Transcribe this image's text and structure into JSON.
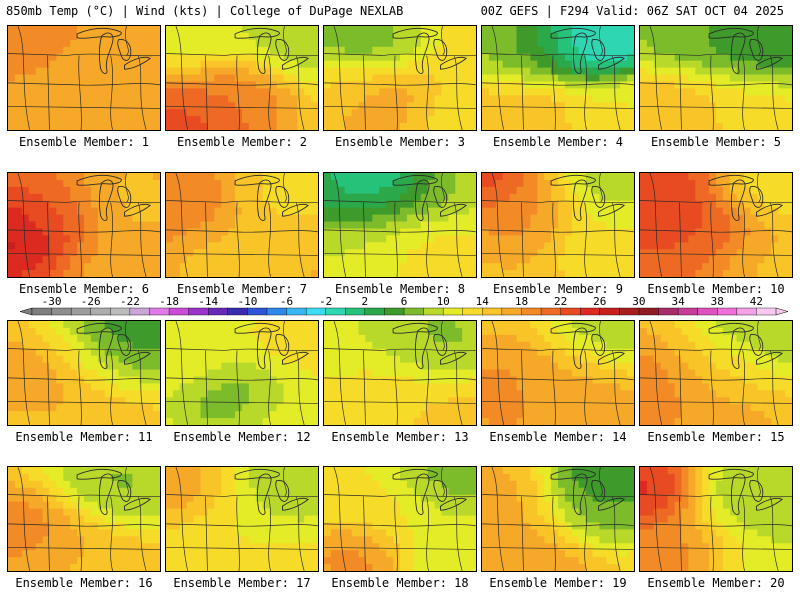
{
  "header": {
    "left": "850mb Temp (°C) | Wind (kts) | College of DuPage NEXLAB",
    "right": "00Z GEFS | F294 Valid: 06Z SAT OCT 04 2025"
  },
  "colorbar": {
    "labels": [
      "-30",
      "-26",
      "-22",
      "-18",
      "-14",
      "-10",
      "-6",
      "-2",
      "2",
      "6",
      "10",
      "14",
      "18",
      "22",
      "26",
      "30",
      "34",
      "38",
      "42"
    ],
    "min": -32,
    "max": 44,
    "step": 2,
    "colors": [
      "#7f7f7f",
      "#8e8e8e",
      "#9d9d9d",
      "#acacac",
      "#bbbbbb",
      "#c9a6d6",
      "#e07ae8",
      "#c94cd9",
      "#9a33c9",
      "#6a28b8",
      "#3a2bb0",
      "#2a55d8",
      "#2d88ea",
      "#36b6f2",
      "#3cdcf0",
      "#2ed6b2",
      "#26c27a",
      "#2aa84a",
      "#3e9a2a",
      "#7cbc2a",
      "#b8d82a",
      "#e4ec28",
      "#f6dc28",
      "#f8c428",
      "#f6a828",
      "#f28a26",
      "#ee6a24",
      "#e84a22",
      "#dc2a20",
      "#c81e1e",
      "#a81e1e",
      "#901c28",
      "#a82c6a",
      "#c83c9a",
      "#e050c0",
      "#ee70d8",
      "#f4a0e6",
      "#f8c8f0"
    ]
  },
  "panels": [
    {
      "caption": "Ensemble Member: 1",
      "base": 18,
      "blobs": [
        [
          0.15,
          0.1,
          0.2,
          20
        ],
        [
          0.85,
          0.85,
          0.3,
          16
        ],
        [
          0.6,
          0.4,
          0.3,
          17
        ]
      ]
    },
    {
      "caption": "Ensemble Member: 2",
      "base": 14,
      "blobs": [
        [
          0.1,
          0.95,
          0.35,
          24
        ],
        [
          0.45,
          0.65,
          0.3,
          20
        ],
        [
          0.85,
          0.1,
          0.35,
          8
        ],
        [
          0.2,
          0.1,
          0.3,
          10
        ]
      ]
    },
    {
      "caption": "Ensemble Member: 3",
      "base": 13,
      "blobs": [
        [
          0.2,
          0.15,
          0.3,
          6
        ],
        [
          0.35,
          0.75,
          0.3,
          18
        ],
        [
          0.9,
          0.9,
          0.3,
          13
        ],
        [
          0.1,
          0.6,
          0.25,
          14
        ]
      ]
    },
    {
      "caption": "Ensemble Member: 4",
      "base": 12,
      "blobs": [
        [
          0.65,
          0.1,
          0.3,
          -2
        ],
        [
          0.8,
          0.15,
          0.25,
          -4
        ],
        [
          0.3,
          0.2,
          0.3,
          6
        ],
        [
          0.25,
          0.9,
          0.35,
          16
        ],
        [
          0.9,
          0.85,
          0.3,
          12
        ]
      ]
    },
    {
      "caption": "Ensemble Member: 5",
      "base": 13,
      "blobs": [
        [
          0.3,
          0.1,
          0.3,
          6
        ],
        [
          0.8,
          0.15,
          0.35,
          3
        ],
        [
          0.2,
          0.85,
          0.35,
          16
        ],
        [
          0.7,
          0.8,
          0.3,
          13
        ]
      ]
    },
    {
      "caption": "Ensemble Member: 6",
      "base": 19,
      "blobs": [
        [
          0.05,
          0.6,
          0.3,
          28
        ],
        [
          0.3,
          0.4,
          0.3,
          22
        ],
        [
          0.8,
          0.3,
          0.35,
          15
        ],
        [
          0.75,
          0.9,
          0.3,
          17
        ]
      ]
    },
    {
      "caption": "Ensemble Member: 7",
      "base": 17,
      "blobs": [
        [
          0.1,
          0.3,
          0.3,
          20
        ],
        [
          0.8,
          0.2,
          0.3,
          13
        ],
        [
          0.5,
          0.8,
          0.35,
          15
        ]
      ]
    },
    {
      "caption": "Ensemble Member: 8",
      "base": 11,
      "blobs": [
        [
          0.35,
          0.05,
          0.25,
          -4
        ],
        [
          0.2,
          0.25,
          0.3,
          2
        ],
        [
          0.6,
          0.2,
          0.3,
          7
        ],
        [
          0.2,
          0.7,
          0.3,
          10
        ],
        [
          0.7,
          0.8,
          0.35,
          13
        ]
      ]
    },
    {
      "caption": "Ensemble Member: 9",
      "base": 15,
      "blobs": [
        [
          0.05,
          0.1,
          0.2,
          24
        ],
        [
          0.25,
          0.4,
          0.3,
          19
        ],
        [
          0.9,
          0.1,
          0.3,
          8
        ],
        [
          0.8,
          0.6,
          0.3,
          12
        ]
      ]
    },
    {
      "caption": "Ensemble Member: 10",
      "base": 19,
      "blobs": [
        [
          0.15,
          0.3,
          0.35,
          24
        ],
        [
          0.4,
          0.6,
          0.3,
          22
        ],
        [
          0.85,
          0.15,
          0.3,
          12
        ],
        [
          0.85,
          0.85,
          0.3,
          15
        ]
      ]
    },
    {
      "caption": "Ensemble Member: 11",
      "base": 14,
      "blobs": [
        [
          0.85,
          0.1,
          0.3,
          2
        ],
        [
          0.7,
          0.3,
          0.35,
          8
        ],
        [
          0.25,
          0.5,
          0.3,
          18
        ],
        [
          0.5,
          0.9,
          0.35,
          16
        ]
      ]
    },
    {
      "caption": "Ensemble Member: 12",
      "base": 11,
      "blobs": [
        [
          0.5,
          0.7,
          0.3,
          6
        ],
        [
          0.2,
          0.3,
          0.3,
          12
        ],
        [
          0.85,
          0.3,
          0.3,
          13
        ],
        [
          0.85,
          0.9,
          0.3,
          12
        ]
      ]
    },
    {
      "caption": "Ensemble Member: 13",
      "base": 12,
      "blobs": [
        [
          0.7,
          0.2,
          0.35,
          7
        ],
        [
          0.2,
          0.2,
          0.3,
          10
        ],
        [
          0.4,
          0.7,
          0.35,
          14
        ],
        [
          0.9,
          0.9,
          0.3,
          15
        ]
      ]
    },
    {
      "caption": "Ensemble Member: 14",
      "base": 15,
      "blobs": [
        [
          0.85,
          0.1,
          0.3,
          8
        ],
        [
          0.2,
          0.7,
          0.35,
          19
        ],
        [
          0.6,
          0.6,
          0.3,
          16
        ],
        [
          0.7,
          0.95,
          0.3,
          18
        ]
      ]
    },
    {
      "caption": "Ensemble Member: 15",
      "base": 15,
      "blobs": [
        [
          0.85,
          0.1,
          0.35,
          7
        ],
        [
          0.1,
          0.7,
          0.35,
          20
        ],
        [
          0.55,
          0.5,
          0.3,
          14
        ],
        [
          0.5,
          0.95,
          0.3,
          17
        ]
      ]
    },
    {
      "caption": "Ensemble Member: 16",
      "base": 14,
      "blobs": [
        [
          0.1,
          0.6,
          0.3,
          20
        ],
        [
          0.75,
          0.15,
          0.35,
          7
        ],
        [
          0.5,
          0.9,
          0.35,
          16
        ]
      ]
    },
    {
      "caption": "Ensemble Member: 17",
      "base": 14,
      "blobs": [
        [
          0.1,
          0.2,
          0.3,
          18
        ],
        [
          0.75,
          0.2,
          0.35,
          8
        ],
        [
          0.4,
          0.7,
          0.35,
          12
        ]
      ]
    },
    {
      "caption": "Ensemble Member: 18",
      "base": 12,
      "blobs": [
        [
          0.8,
          0.1,
          0.3,
          6
        ],
        [
          0.2,
          0.85,
          0.25,
          20
        ],
        [
          0.4,
          0.4,
          0.35,
          13
        ],
        [
          0.85,
          0.7,
          0.3,
          10
        ]
      ]
    },
    {
      "caption": "Ensemble Member: 19",
      "base": 14,
      "blobs": [
        [
          0.8,
          0.1,
          0.3,
          3
        ],
        [
          0.75,
          0.4,
          0.3,
          6
        ],
        [
          0.15,
          0.3,
          0.3,
          17
        ],
        [
          0.3,
          0.85,
          0.35,
          18
        ]
      ]
    },
    {
      "caption": "Ensemble Member: 20",
      "base": 14,
      "blobs": [
        [
          0.05,
          0.25,
          0.25,
          26
        ],
        [
          0.3,
          0.8,
          0.35,
          20
        ],
        [
          0.75,
          0.4,
          0.35,
          7
        ],
        [
          0.75,
          0.9,
          0.3,
          10
        ]
      ]
    }
  ]
}
